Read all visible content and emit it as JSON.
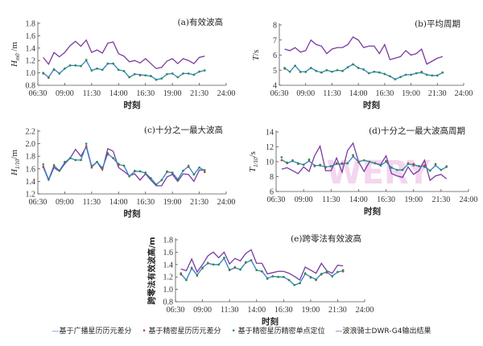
{
  "legend": [
    {
      "label": "基于广播星历历元差分",
      "color": "#2f7fd0",
      "marker": "line"
    },
    {
      "label": "基于精密星历历元差分",
      "color": "#e0302a",
      "marker": "dot"
    },
    {
      "label": "基于精密星历精密单点定位",
      "color": "#1a9a4a",
      "marker": "dot"
    },
    {
      "label": "波浪骑士DWR-G4输出结果",
      "color": "#7a3aa0",
      "marker": "line"
    }
  ],
  "watermark": "WERY",
  "chart_data": [
    {
      "type": "line",
      "title": "(a)有效波高",
      "ylabel": "H",
      "ylabel_sub": "m0",
      "ylabel_unit": " /m",
      "xlabel": "时刻",
      "xticks": [
        "06:30",
        "09:00",
        "11:30",
        "14:00",
        "16:30",
        "19:00",
        "21:30",
        "24:00"
      ],
      "xlim": [
        "06:30",
        "24:00"
      ],
      "ylim": [
        0.8,
        1.8
      ],
      "yticks": [
        "0.8",
        "1.0",
        "1.2",
        "1.4",
        "1.6",
        "1.8"
      ],
      "x_start": "07:00",
      "x_step_min": 30,
      "series": [
        {
          "name": "基于广播星历历元差分",
          "values": [
            1.0,
            0.93,
            1.06,
            0.99,
            1.07,
            1.12,
            1.12,
            1.11,
            1.2,
            1.04,
            1.07,
            1.05,
            1.15,
            1.15,
            1.05,
            1.03,
            0.93,
            0.98,
            0.97,
            0.96,
            0.95,
            0.89,
            0.91,
            0.98,
            0.99,
            0.93,
            0.99,
            0.99,
            0.97,
            1.02,
            1.04
          ]
        },
        {
          "name": "基于精密星历历元差分",
          "values": [
            0.99,
            0.92,
            1.05,
            0.99,
            1.07,
            1.12,
            1.12,
            1.11,
            1.21,
            1.04,
            1.07,
            1.05,
            1.15,
            1.15,
            1.05,
            1.03,
            0.93,
            0.98,
            0.96,
            0.96,
            0.95,
            0.89,
            0.91,
            0.98,
            0.99,
            0.93,
            0.99,
            0.99,
            0.97,
            1.02,
            1.04
          ]
        },
        {
          "name": "基于精密星历精密单点定位",
          "values": [
            1.0,
            0.93,
            1.06,
            0.99,
            1.07,
            1.12,
            1.12,
            1.11,
            1.2,
            1.04,
            1.07,
            1.05,
            1.15,
            1.15,
            1.05,
            1.03,
            0.93,
            0.98,
            0.97,
            0.96,
            0.95,
            0.89,
            0.91,
            0.98,
            0.99,
            0.93,
            0.99,
            0.99,
            0.97,
            1.02,
            1.04
          ]
        },
        {
          "name": "波浪骑士DWR-G4输出结果",
          "values": [
            1.25,
            1.14,
            1.33,
            1.26,
            1.33,
            1.44,
            1.51,
            1.43,
            1.53,
            1.33,
            1.37,
            1.32,
            1.48,
            1.5,
            1.31,
            1.27,
            1.18,
            1.2,
            1.16,
            1.23,
            1.15,
            1.07,
            1.09,
            1.19,
            1.23,
            1.15,
            1.23,
            1.2,
            1.15,
            1.25,
            1.27
          ]
        }
      ]
    },
    {
      "type": "line",
      "title": "(b)平均周期",
      "ylabel": "T",
      "ylabel_sub": "",
      "ylabel_unit": "/s",
      "xlabel": "时刻",
      "xticks": [
        "06:30",
        "09:00",
        "11:30",
        "14:00",
        "16:30",
        "19:00",
        "21:30",
        "24:00"
      ],
      "xlim": [
        "06:30",
        "24:00"
      ],
      "ylim": [
        4,
        8
      ],
      "yticks": [
        "4",
        "5",
        "6",
        "7",
        "8"
      ],
      "x_start": "07:00",
      "x_step_min": 30,
      "series": [
        {
          "name": "基于广播星历历元差分",
          "values": [
            5.15,
            4.9,
            5.3,
            4.9,
            4.9,
            5.15,
            4.95,
            4.85,
            5.0,
            4.9,
            5.0,
            4.95,
            5.2,
            5.4,
            5.15,
            5.05,
            4.8,
            4.9,
            4.85,
            4.75,
            4.6,
            4.4,
            4.55,
            4.7,
            4.7,
            4.8,
            4.85,
            4.7,
            4.65,
            4.65,
            4.85
          ]
        },
        {
          "name": "基于精密星历历元差分",
          "values": [
            5.1,
            4.9,
            5.3,
            4.88,
            4.88,
            5.15,
            4.95,
            4.85,
            5.0,
            4.9,
            5.0,
            4.95,
            5.2,
            5.38,
            5.15,
            5.05,
            4.8,
            4.9,
            4.85,
            4.75,
            4.6,
            4.4,
            4.55,
            4.7,
            4.7,
            4.8,
            4.9,
            4.7,
            4.65,
            4.65,
            4.85
          ]
        },
        {
          "name": "基于精密星历精密单点定位",
          "values": [
            5.15,
            4.9,
            5.3,
            4.9,
            4.9,
            5.15,
            4.95,
            4.85,
            5.0,
            4.9,
            5.0,
            4.95,
            5.2,
            5.4,
            5.15,
            5.05,
            4.8,
            4.9,
            4.85,
            4.75,
            4.6,
            4.4,
            4.55,
            4.7,
            4.7,
            4.8,
            4.85,
            4.7,
            4.65,
            4.65,
            4.85
          ]
        },
        {
          "name": "波浪骑士DWR-G4输出结果",
          "values": [
            6.4,
            6.3,
            6.5,
            6.2,
            6.3,
            7.0,
            6.7,
            6.6,
            6.1,
            6.4,
            6.5,
            6.5,
            6.7,
            7.2,
            7.0,
            6.5,
            6.6,
            6.6,
            6.1,
            6.7,
            5.7,
            5.8,
            5.9,
            6.3,
            6.0,
            6.1,
            6.4,
            5.4,
            5.6,
            5.8,
            5.9
          ]
        }
      ]
    },
    {
      "type": "line",
      "title": "(c)十分之一最大波高",
      "ylabel": "H",
      "ylabel_sub": "1/10",
      "ylabel_unit": "/m",
      "xlabel": "时刻",
      "xticks": [
        "06:30",
        "09:00",
        "11:30",
        "14:00",
        "16:30",
        "19:00",
        "21:30",
        "24:00"
      ],
      "xlim": [
        "06:30",
        "24:00"
      ],
      "ylim": [
        1.2,
        2.2
      ],
      "yticks": [
        "1.2",
        "1.4",
        "1.6",
        "1.8",
        "2.0",
        "2.2"
      ],
      "x_start": "07:00",
      "x_step_min": 30,
      "series": [
        {
          "name": "基于广播星历历元差分",
          "values": [
            1.65,
            1.43,
            1.65,
            1.57,
            1.7,
            1.77,
            1.74,
            1.74,
            1.97,
            1.64,
            1.71,
            1.61,
            1.84,
            1.77,
            1.67,
            1.65,
            1.48,
            1.56,
            1.56,
            1.53,
            1.45,
            1.35,
            1.42,
            1.55,
            1.54,
            1.43,
            1.57,
            1.64,
            1.51,
            1.62,
            1.57
          ]
        },
        {
          "name": "基于精密星历历元差分",
          "values": [
            1.63,
            1.43,
            1.64,
            1.57,
            1.7,
            1.77,
            1.74,
            1.74,
            1.96,
            1.62,
            1.71,
            1.6,
            1.83,
            1.77,
            1.66,
            1.65,
            1.48,
            1.56,
            1.56,
            1.53,
            1.45,
            1.35,
            1.42,
            1.55,
            1.53,
            1.43,
            1.57,
            1.63,
            1.51,
            1.62,
            1.55
          ]
        },
        {
          "name": "基于精密星历精密单点定位",
          "values": [
            1.67,
            1.43,
            1.66,
            1.57,
            1.71,
            1.77,
            1.74,
            1.74,
            2.0,
            1.65,
            1.71,
            1.62,
            1.85,
            1.77,
            1.68,
            1.65,
            1.48,
            1.57,
            1.56,
            1.54,
            1.45,
            1.35,
            1.42,
            1.56,
            1.54,
            1.43,
            1.57,
            1.65,
            1.51,
            1.62,
            1.58
          ]
        },
        {
          "name": "波浪骑士DWR-G4输出结果",
          "values": [
            1.63,
            1.42,
            1.62,
            1.56,
            1.68,
            1.77,
            1.91,
            1.8,
            1.95,
            1.63,
            1.71,
            1.58,
            1.92,
            1.88,
            1.62,
            1.56,
            1.49,
            1.52,
            1.42,
            1.52,
            1.42,
            1.33,
            1.33,
            1.47,
            1.51,
            1.4,
            1.52,
            1.51,
            1.4,
            1.58,
            1.58
          ]
        }
      ]
    },
    {
      "type": "line",
      "title": "(d)十分之一最大波高周期",
      "ylabel": "T",
      "ylabel_sub": "1/10",
      "ylabel_unit": "/s",
      "xlabel": "时刻",
      "xticks": [
        "06:30",
        "09:00",
        "11:30",
        "14:00",
        "16:30",
        "19:00",
        "21:30",
        "24:00"
      ],
      "xlim": [
        "06:30",
        "24:00"
      ],
      "ylim": [
        6,
        14
      ],
      "yticks": [
        "6",
        "8",
        "10",
        "12",
        "14"
      ],
      "x_start": "07:00",
      "x_step_min": 30,
      "series": [
        {
          "name": "基于广播星历历元差分",
          "values": [
            10.3,
            9.8,
            10.1,
            9.8,
            9.6,
            10.1,
            9.5,
            9.5,
            9.3,
            9.4,
            9.7,
            9.7,
            9.8,
            10.7,
            10.0,
            10.2,
            10.0,
            9.8,
            9.5,
            10.0,
            9.2,
            8.9,
            8.9,
            9.7,
            9.6,
            9.4,
            9.4,
            8.8,
            9.5,
            8.9,
            9.3
          ]
        },
        {
          "name": "基于精密星历历元差分",
          "values": [
            10.2,
            9.8,
            10.2,
            9.7,
            9.6,
            10.2,
            9.5,
            9.5,
            9.2,
            9.4,
            9.8,
            9.8,
            9.8,
            10.8,
            10.0,
            10.2,
            10.0,
            9.8,
            9.5,
            10.1,
            9.2,
            8.9,
            8.9,
            9.8,
            9.7,
            9.4,
            9.5,
            8.8,
            9.6,
            8.9,
            9.3
          ]
        },
        {
          "name": "基于精密星历精密单点定位",
          "values": [
            10.6,
            9.9,
            10.1,
            9.8,
            9.6,
            10.3,
            9.4,
            9.6,
            9.3,
            9.4,
            9.7,
            9.7,
            9.8,
            10.9,
            9.9,
            10.2,
            10.0,
            9.8,
            9.5,
            10.0,
            9.2,
            8.9,
            8.9,
            9.7,
            9.5,
            9.4,
            9.3,
            8.8,
            9.7,
            8.9,
            9.4
          ]
        },
        {
          "name": "波浪骑士DWR-G4输出结果",
          "values": [
            9.0,
            9.2,
            8.8,
            8.4,
            9.3,
            8.7,
            10.8,
            12.1,
            8.8,
            8.8,
            10.5,
            8.6,
            11.5,
            12.5,
            10.0,
            8.7,
            10.0,
            9.8,
            9.6,
            10.8,
            8.4,
            8.1,
            7.9,
            9.3,
            8.3,
            8.8,
            10.2,
            7.5,
            8.1,
            8.3,
            7.7
          ]
        }
      ]
    },
    {
      "type": "line",
      "title": "(e)跨零法有效波高",
      "ylabel": "跨零法有效波高",
      "ylabel_sub": "",
      "ylabel_unit": "/m",
      "xlabel": "时刻",
      "xticks": [
        "06:30",
        "09:00",
        "11:30",
        "14:00",
        "16:30",
        "19:00",
        "21:30",
        "24:00"
      ],
      "xlim": [
        "06:30",
        "24:00"
      ],
      "ylim": [
        0.8,
        1.8
      ],
      "yticks": [
        "0.8",
        "1.0",
        "1.2",
        "1.4",
        "1.6",
        "1.8"
      ],
      "x_start": "07:00",
      "x_step_min": 30,
      "series": [
        {
          "name": "基于广播星历历元差分",
          "values": [
            1.25,
            1.15,
            1.34,
            1.23,
            1.35,
            1.42,
            1.4,
            1.4,
            1.5,
            1.31,
            1.35,
            1.32,
            1.43,
            1.47,
            1.31,
            1.29,
            1.18,
            1.21,
            1.2,
            1.2,
            1.15,
            1.07,
            1.1,
            1.25,
            1.2,
            1.16,
            1.25,
            1.28,
            1.21,
            1.28,
            1.3
          ]
        },
        {
          "name": "基于精密星历历元差分",
          "values": [
            1.24,
            1.15,
            1.34,
            1.22,
            1.34,
            1.42,
            1.4,
            1.4,
            1.51,
            1.31,
            1.35,
            1.32,
            1.43,
            1.47,
            1.31,
            1.29,
            1.17,
            1.21,
            1.2,
            1.2,
            1.15,
            1.07,
            1.1,
            1.25,
            1.19,
            1.15,
            1.24,
            1.27,
            1.21,
            1.28,
            1.29
          ]
        },
        {
          "name": "基于精密星历精密单点定位",
          "values": [
            1.26,
            1.15,
            1.35,
            1.23,
            1.35,
            1.43,
            1.4,
            1.4,
            1.51,
            1.32,
            1.36,
            1.32,
            1.44,
            1.47,
            1.31,
            1.29,
            1.18,
            1.21,
            1.2,
            1.2,
            1.15,
            1.07,
            1.1,
            1.26,
            1.2,
            1.16,
            1.25,
            1.29,
            1.21,
            1.28,
            1.31
          ]
        },
        {
          "name": "波浪骑士DWR-G4输出结果",
          "values": [
            1.33,
            1.3,
            1.49,
            1.28,
            1.4,
            1.54,
            1.6,
            1.51,
            1.6,
            1.41,
            1.5,
            1.46,
            1.58,
            1.64,
            1.42,
            1.42,
            1.25,
            1.27,
            1.29,
            1.29,
            1.26,
            1.21,
            1.15,
            1.36,
            1.31,
            1.26,
            1.42,
            1.3,
            1.26,
            1.39,
            1.38
          ]
        }
      ]
    }
  ]
}
